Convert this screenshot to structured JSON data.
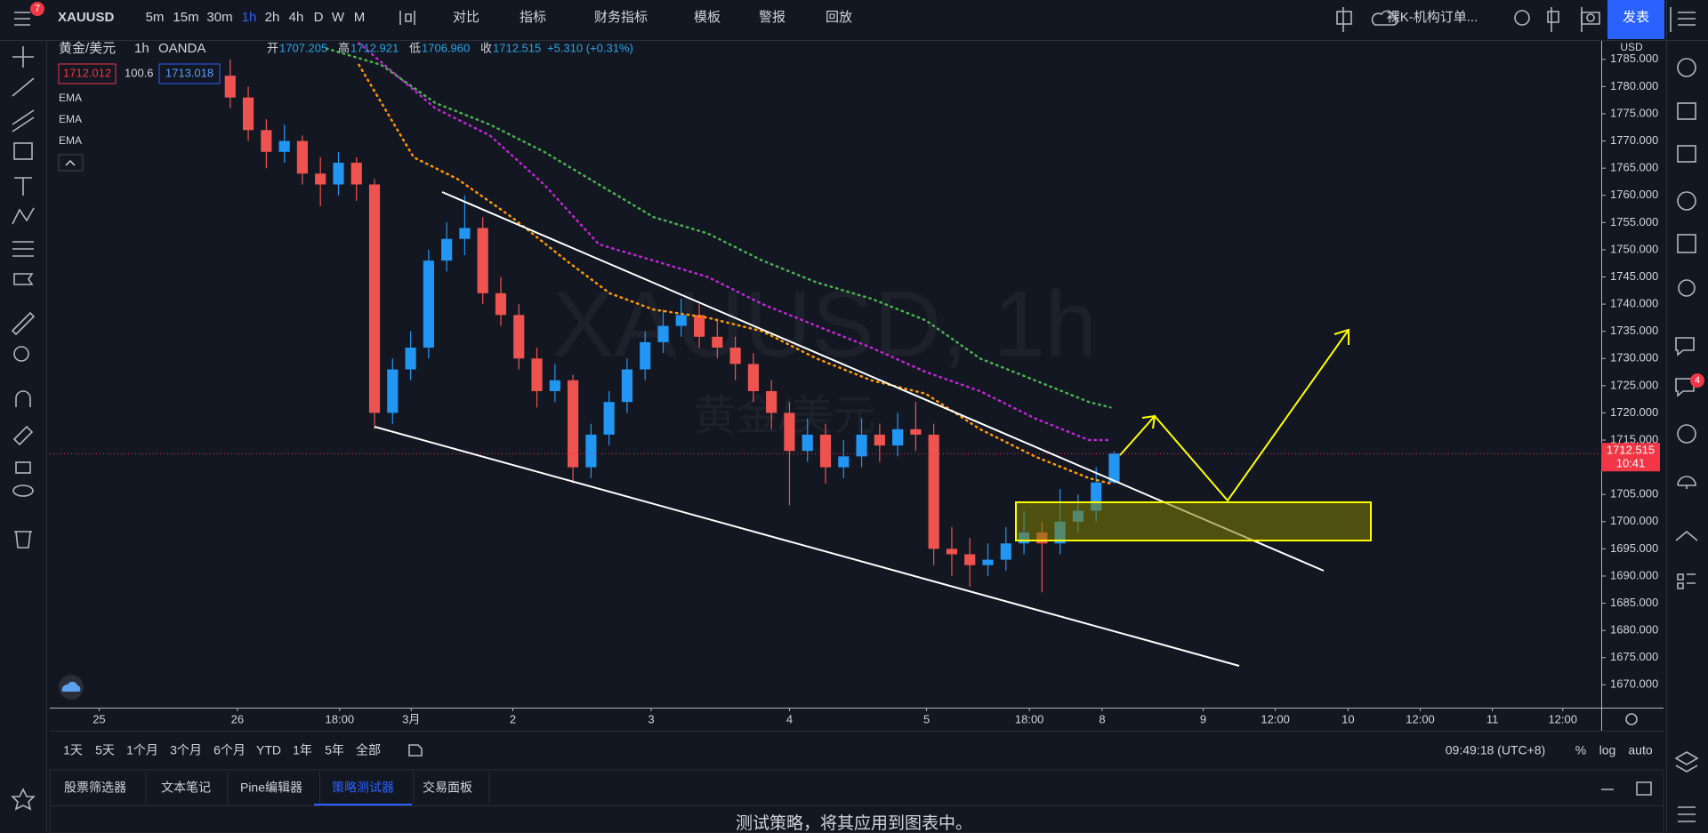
{
  "toolbar": {
    "symbol": "XAUUSD",
    "notification_count": "7",
    "intervals": [
      "5m",
      "15m",
      "30m",
      "1h",
      "2h",
      "4h",
      "D",
      "W",
      "M"
    ],
    "buttons": [
      "对比",
      "指标",
      "财务指标",
      "模板",
      "警报",
      "回放"
    ],
    "layout_name": "裸K-机构订单...",
    "publish": "发表"
  },
  "chart_data": {
    "type": "candlestick",
    "legend": {
      "name": "黄金/美元",
      "interval": "1h",
      "exchange": "OANDA",
      "ohlc": [
        {
          "label": "开",
          "value": "1707.205"
        },
        {
          "label": "高",
          "value": "1712.921"
        },
        {
          "label": "低",
          "value": "1706.960"
        },
        {
          "label": "收",
          "value": "1712.515"
        }
      ],
      "change": "+5.310 (+0.31%)",
      "bid": "1712.012",
      "spread": "100.6",
      "ask": "1713.018"
    },
    "watermark": "XAUUSD, 1h",
    "watermark_sub": "黄金/美元",
    "currency": "USD",
    "x": [
      30,
      33,
      36,
      39,
      42,
      45,
      48,
      51,
      54,
      57,
      60,
      63,
      66,
      69,
      72,
      75,
      78,
      81,
      84,
      87,
      90,
      93,
      96,
      99,
      102,
      105,
      108,
      111,
      114,
      117,
      120,
      123,
      126,
      129,
      132,
      135,
      138,
      141,
      144,
      147,
      150,
      153,
      156,
      159,
      162,
      165,
      168,
      171,
      174,
      177
    ],
    "open": [
      1782,
      1778,
      1772,
      1768,
      1770,
      1764,
      1762,
      1766,
      1762,
      1720,
      1728,
      1732,
      1748,
      1752,
      1754,
      1742,
      1738,
      1730,
      1724,
      1726,
      1710,
      1716,
      1722,
      1728,
      1733,
      1736,
      1738,
      1734,
      1732,
      1729,
      1724,
      1720,
      1713,
      1716,
      1710,
      1712,
      1716,
      1714,
      1717,
      1716,
      1695,
      1694,
      1692,
      1693,
      1696,
      1698,
      1696,
      1700,
      1702,
      1707.205
    ],
    "high": [
      1785,
      1780,
      1774,
      1773,
      1771,
      1767,
      1768,
      1767,
      1763,
      1730,
      1735,
      1750,
      1755,
      1760,
      1756,
      1745,
      1740,
      1732,
      1729,
      1727,
      1718,
      1724,
      1730,
      1735,
      1739,
      1741,
      1740,
      1737,
      1734,
      1731,
      1726,
      1722,
      1719,
      1718,
      1715,
      1719,
      1718,
      1720,
      1722,
      1718,
      1699,
      1697,
      1696,
      1699,
      1702,
      1700,
      1706,
      1705,
      1710,
      1712.921
    ],
    "low": [
      1776,
      1770,
      1765,
      1766,
      1762,
      1758,
      1760,
      1759,
      1717,
      1718,
      1726,
      1730,
      1746,
      1749,
      1740,
      1736,
      1728,
      1721,
      1722,
      1707,
      1708,
      1714,
      1720,
      1726,
      1731,
      1734,
      1732,
      1730,
      1726,
      1722,
      1717,
      1703,
      1711,
      1707,
      1708,
      1710,
      1711,
      1712,
      1713,
      1692,
      1690,
      1688,
      1690,
      1691,
      1694,
      1687,
      1694,
      1698,
      1700,
      1706.96
    ],
    "close": [
      1778,
      1772,
      1768,
      1770,
      1764,
      1762,
      1766,
      1762,
      1720,
      1728,
      1732,
      1748,
      1752,
      1754,
      1742,
      1738,
      1730,
      1724,
      1726,
      1710,
      1716,
      1722,
      1728,
      1733,
      1736,
      1738,
      1734,
      1732,
      1729,
      1724,
      1720,
      1713,
      1716,
      1710,
      1712,
      1716,
      1714,
      1717,
      1716,
      1695,
      1694,
      1692,
      1693,
      1696,
      1698,
      1696,
      1700,
      1702,
      1707.205,
      1712.515
    ],
    "up_color": "#2196f3",
    "down_color": "#ef5350",
    "series": [
      {
        "name": "EMA",
        "color": "#ff9800",
        "x": [
          51.4,
          60.5,
          67.8,
          76.8,
          85.9,
          93.1,
          100.4,
          109.4,
          118.5,
          127.5,
          136.6,
          145.7,
          154.7,
          163.8,
          172.8,
          176.4
        ],
        "values": [
          1784,
          1767,
          1763,
          1756,
          1748,
          1742,
          1739,
          1737.5,
          1735,
          1730,
          1726,
          1723.5,
          1717,
          1712,
          1708,
          1707
        ]
      },
      {
        "name": "EMA",
        "color": "#c026d3",
        "x": [
          51.4,
          64.1,
          73.2,
          82.2,
          91.3,
          100.4,
          109.4,
          118.5,
          127.5,
          136.6,
          145.7,
          154.7,
          163.8,
          172.8,
          176.4
        ],
        "values": [
          1788,
          1776,
          1771,
          1762,
          1751,
          1748,
          1745,
          1740,
          1736,
          1732,
          1727.5,
          1724,
          1719,
          1715,
          1715
        ]
      },
      {
        "name": "EMA",
        "color": "#4caf50",
        "x": [
          46.0,
          55.1,
          64.1,
          73.2,
          82.2,
          91.3,
          100.4,
          109.4,
          118.5,
          127.5,
          136.6,
          145.7,
          154.7,
          163.8,
          172.8,
          176.4
        ],
        "values": [
          1787,
          1784,
          1777,
          1773,
          1768,
          1762,
          1756,
          1753,
          1748,
          1744,
          1741,
          1737,
          1730,
          1726,
          1722,
          1721
        ]
      }
    ],
    "last_price": 1712.515,
    "countdown": "10:41",
    "xlim": [
      0,
      258
    ],
    "ylim": [
      1665.8,
      1788.4
    ],
    "xticks": [
      {
        "value": 8.2,
        "label": "25"
      },
      {
        "value": 31.2,
        "label": "26"
      },
      {
        "value": 48.2,
        "label": "18:00"
      },
      {
        "value": 60.1,
        "label": "3月"
      },
      {
        "value": 77.0,
        "label": "2"
      },
      {
        "value": 100.0,
        "label": "3"
      },
      {
        "value": 123.0,
        "label": "4"
      },
      {
        "value": 145.8,
        "label": "5"
      },
      {
        "value": 162.9,
        "label": "18:00"
      },
      {
        "value": 175.0,
        "label": "8"
      },
      {
        "value": 191.8,
        "label": "9"
      },
      {
        "value": 203.8,
        "label": "12:00"
      },
      {
        "value": 215.9,
        "label": "10"
      },
      {
        "value": 227.9,
        "label": "12:00"
      },
      {
        "value": 239.9,
        "label": "11"
      },
      {
        "value": 251.6,
        "label": "12:00"
      }
    ],
    "yticks": [
      {
        "value": 1670,
        "label": "1670.000"
      },
      {
        "value": 1675,
        "label": "1675.000"
      },
      {
        "value": 1680,
        "label": "1680.000"
      },
      {
        "value": 1685,
        "label": "1685.000"
      },
      {
        "value": 1690,
        "label": "1690.000"
      },
      {
        "value": 1695,
        "label": "1695.000"
      },
      {
        "value": 1700,
        "label": "1700.000"
      },
      {
        "value": 1705,
        "label": "1705.000"
      },
      {
        "value": 1710,
        "label": "1710.000"
      },
      {
        "value": 1715,
        "label": "1715.000"
      },
      {
        "value": 1720,
        "label": "1720.000"
      },
      {
        "value": 1725,
        "label": "1725.000"
      },
      {
        "value": 1730,
        "label": "1730.000"
      },
      {
        "value": 1735,
        "label": "1735.000"
      },
      {
        "value": 1740,
        "label": "1740.000"
      },
      {
        "value": 1745,
        "label": "1745.000"
      },
      {
        "value": 1750,
        "label": "1750.000"
      },
      {
        "value": 1755,
        "label": "1755.000"
      },
      {
        "value": 1760,
        "label": "1760.000"
      },
      {
        "value": 1765,
        "label": "1765.000"
      },
      {
        "value": 1770,
        "label": "1770.000"
      },
      {
        "value": 1775,
        "label": "1775.000"
      },
      {
        "value": 1780,
        "label": "1780.000"
      },
      {
        "value": 1785,
        "label": "1785.000"
      }
    ]
  },
  "range_bar": {
    "ranges": [
      "1天",
      "5天",
      "1个月",
      "3个月",
      "6个月",
      "YTD",
      "1年",
      "5年",
      "全部"
    ],
    "clock": "09:49:18 (UTC+8)",
    "options": [
      "%",
      "log",
      "auto"
    ]
  },
  "panel": {
    "tabs": [
      "股票筛选器",
      "文本笔记",
      "Pine编辑器",
      "策略测试器",
      "交易面板"
    ],
    "message": "测试策略，将其应用到图表中。"
  },
  "sidebar": {
    "notification_count": "4"
  }
}
